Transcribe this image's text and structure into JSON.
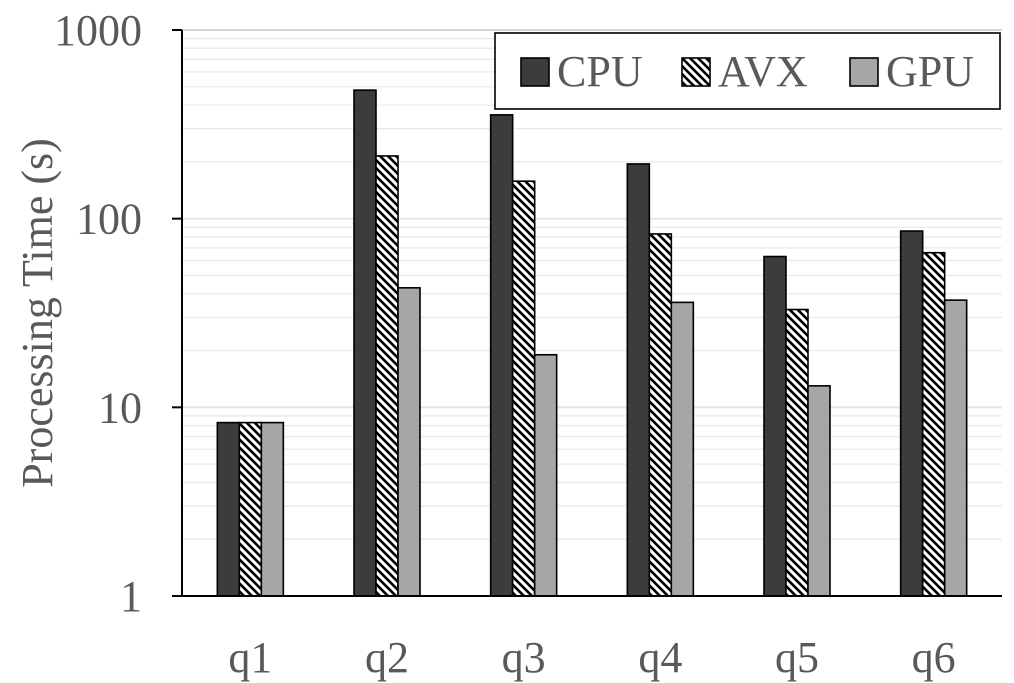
{
  "chart_data": {
    "type": "bar",
    "yscale": "log",
    "ylim": [
      1,
      1000
    ],
    "ylabel": "Processing Time (s)",
    "xlabel": "",
    "title": "",
    "grid": true,
    "legend_position": "top-right",
    "categories": [
      "q1",
      "q2",
      "q3",
      "q4",
      "q5",
      "q6"
    ],
    "y_ticks": [
      "1",
      "10",
      "100",
      "1000"
    ],
    "series": [
      {
        "name": "CPU",
        "values": [
          8.3,
          480,
          355,
          195,
          63,
          86
        ],
        "color": "#3c3c3c",
        "pattern": "solid"
      },
      {
        "name": "AVX",
        "values": [
          8.3,
          215,
          158,
          83,
          33,
          66
        ],
        "color": "#000000",
        "pattern": "diagonal-hatch"
      },
      {
        "name": "GPU",
        "values": [
          8.3,
          43,
          19,
          36,
          13,
          37
        ],
        "color": "#a6a6a6",
        "pattern": "solid"
      }
    ]
  }
}
